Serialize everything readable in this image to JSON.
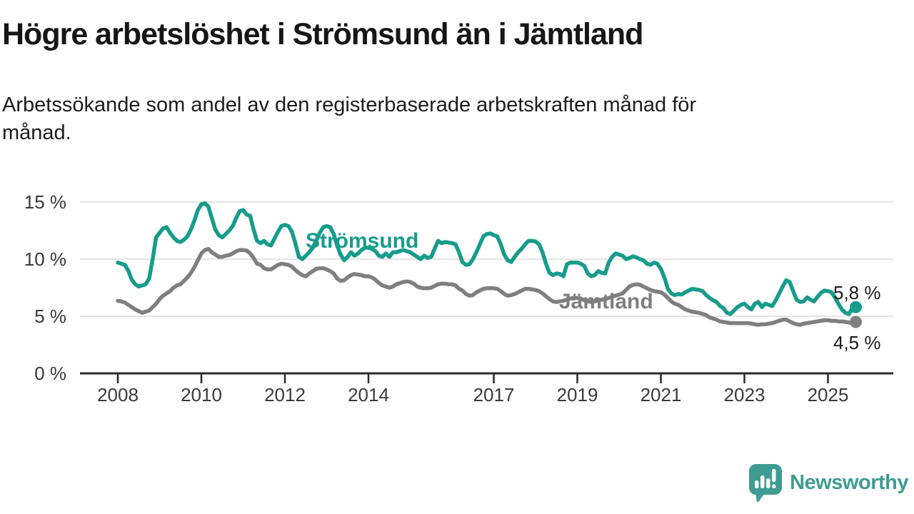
{
  "header": {
    "title": "Högre arbetslöshet i Strömsund än i Jämtland",
    "subtitle_line1": "Arbetssökande som andel av den registerbaserade arbetskraften månad för",
    "subtitle_line2": "månad."
  },
  "chart_data": {
    "type": "line",
    "title": "Högre arbetslöshet i Strömsund än i Jämtland",
    "subtitle": "Arbetssökande som andel av den registerbaserade arbetskraften månad för månad.",
    "unit": "percent",
    "x_frequency": "monthly",
    "x_start": "2008-01",
    "x_end": "2025-09",
    "x_tick_labels": [
      "2008",
      "2010",
      "2012",
      "2014",
      "2017",
      "2019",
      "2021",
      "2023",
      "2025"
    ],
    "y_tick_labels": [
      "0 %",
      "5 %",
      "10 %",
      "15 %"
    ],
    "y_tick_values": [
      0,
      5,
      10,
      15
    ],
    "ylim": [
      0,
      16
    ],
    "grid": "horizontal",
    "legend_position": "inline-labels",
    "series": [
      {
        "name": "Strömsund",
        "color": "#179c8c",
        "end_label": "5,8 %",
        "end_value": 5.8,
        "values": [
          9.7,
          9.6,
          9.5,
          9.0,
          8.2,
          7.8,
          7.6,
          7.7,
          7.8,
          8.3,
          10.0,
          11.9,
          12.3,
          12.7,
          12.8,
          12.3,
          11.9,
          11.6,
          11.5,
          11.7,
          12.0,
          12.6,
          13.4,
          14.3,
          14.8,
          14.9,
          14.6,
          13.6,
          12.6,
          12.1,
          11.9,
          12.2,
          12.5,
          12.9,
          13.6,
          14.2,
          14.3,
          13.9,
          13.8,
          12.6,
          11.6,
          11.4,
          11.6,
          11.3,
          11.2,
          11.8,
          12.4,
          12.9,
          13.0,
          12.9,
          12.4,
          11.4,
          10.2,
          10.0,
          10.3,
          10.6,
          11.0,
          11.6,
          12.3,
          12.8,
          12.9,
          12.8,
          12.2,
          11.2,
          10.4,
          9.9,
          10.2,
          10.6,
          10.3,
          10.5,
          10.8,
          11.0,
          11.0,
          10.9,
          10.7,
          10.3,
          10.2,
          10.5,
          10.2,
          10.6,
          10.6,
          10.7,
          10.8,
          10.7,
          10.6,
          10.4,
          10.2,
          10.0,
          10.3,
          10.1,
          10.2,
          10.9,
          11.6,
          11.4,
          11.5,
          11.45,
          11.4,
          11.3,
          10.6,
          9.75,
          9.5,
          9.55,
          10.0,
          10.6,
          11.3,
          12.0,
          12.2,
          12.25,
          12.1,
          12.0,
          11.3,
          10.4,
          9.9,
          9.75,
          10.2,
          10.6,
          10.9,
          11.3,
          11.6,
          11.6,
          11.55,
          11.3,
          10.6,
          9.6,
          8.8,
          8.6,
          8.75,
          8.7,
          8.5,
          9.55,
          9.7,
          9.7,
          9.7,
          9.6,
          9.4,
          8.75,
          8.5,
          8.6,
          8.95,
          8.8,
          8.75,
          9.7,
          10.2,
          10.5,
          10.4,
          10.3,
          10.0,
          10.1,
          10.25,
          10.15,
          10.0,
          9.9,
          9.6,
          9.5,
          9.7,
          9.6,
          9.15,
          8.4,
          7.4,
          7.0,
          6.85,
          6.95,
          6.9,
          7.1,
          7.25,
          7.4,
          7.35,
          7.3,
          7.2,
          6.85,
          6.6,
          6.4,
          6.25,
          5.9,
          5.7,
          5.3,
          5.2,
          5.5,
          5.8,
          6.0,
          6.1,
          5.8,
          5.6,
          6.1,
          6.25,
          5.8,
          6.1,
          6.0,
          5.9,
          6.4,
          7.0,
          7.6,
          8.15,
          8.0,
          7.2,
          6.45,
          6.25,
          6.3,
          6.65,
          6.45,
          6.3,
          6.7,
          7.05,
          7.25,
          7.2,
          7.1,
          6.65,
          6.1,
          5.6,
          5.3,
          5.2,
          5.7,
          5.8
        ]
      },
      {
        "name": "Jämtland",
        "color": "#7f7f7f",
        "end_label": "4,5 %",
        "end_value": 4.5,
        "values": [
          6.35,
          6.3,
          6.2,
          6.0,
          5.8,
          5.6,
          5.45,
          5.3,
          5.4,
          5.5,
          5.8,
          6.1,
          6.5,
          6.8,
          7.0,
          7.2,
          7.5,
          7.7,
          7.8,
          8.1,
          8.4,
          8.8,
          9.3,
          9.9,
          10.5,
          10.8,
          10.9,
          10.6,
          10.4,
          10.2,
          10.2,
          10.3,
          10.35,
          10.5,
          10.7,
          10.8,
          10.8,
          10.75,
          10.5,
          10.1,
          9.6,
          9.5,
          9.2,
          9.1,
          9.1,
          9.3,
          9.5,
          9.6,
          9.55,
          9.5,
          9.35,
          9.05,
          8.8,
          8.6,
          8.5,
          8.75,
          8.95,
          9.15,
          9.2,
          9.2,
          9.1,
          8.95,
          8.75,
          8.3,
          8.1,
          8.15,
          8.4,
          8.6,
          8.7,
          8.65,
          8.6,
          8.5,
          8.5,
          8.4,
          8.2,
          7.9,
          7.7,
          7.6,
          7.5,
          7.6,
          7.8,
          7.9,
          8.0,
          8.05,
          8.0,
          7.85,
          7.6,
          7.5,
          7.45,
          7.45,
          7.5,
          7.65,
          7.8,
          7.85,
          7.85,
          7.8,
          7.8,
          7.7,
          7.4,
          7.25,
          6.95,
          6.8,
          6.85,
          7.1,
          7.25,
          7.4,
          7.45,
          7.45,
          7.45,
          7.4,
          7.2,
          6.95,
          6.8,
          6.85,
          6.95,
          7.1,
          7.25,
          7.4,
          7.4,
          7.35,
          7.3,
          7.2,
          7.0,
          6.75,
          6.5,
          6.3,
          6.25,
          6.3,
          6.35,
          6.45,
          6.55,
          6.6,
          6.6,
          6.55,
          6.4,
          6.3,
          6.25,
          6.3,
          6.4,
          6.45,
          6.5,
          6.6,
          6.7,
          6.8,
          6.9,
          7.0,
          7.3,
          7.6,
          7.75,
          7.8,
          7.75,
          7.6,
          7.45,
          7.3,
          7.2,
          7.15,
          7.1,
          6.9,
          6.6,
          6.3,
          6.1,
          6.0,
          5.8,
          5.6,
          5.5,
          5.4,
          5.35,
          5.3,
          5.2,
          5.1,
          4.9,
          4.8,
          4.7,
          4.55,
          4.5,
          4.45,
          4.4,
          4.4,
          4.4,
          4.4,
          4.4,
          4.4,
          4.35,
          4.3,
          4.25,
          4.3,
          4.3,
          4.35,
          4.4,
          4.5,
          4.6,
          4.7,
          4.7,
          4.55,
          4.4,
          4.3,
          4.25,
          4.35,
          4.4,
          4.45,
          4.5,
          4.55,
          4.6,
          4.65,
          4.65,
          4.6,
          4.6,
          4.55,
          4.55,
          4.5,
          4.45,
          4.4,
          4.5
        ]
      }
    ]
  },
  "footer": {
    "brand": "Newsworthy"
  }
}
